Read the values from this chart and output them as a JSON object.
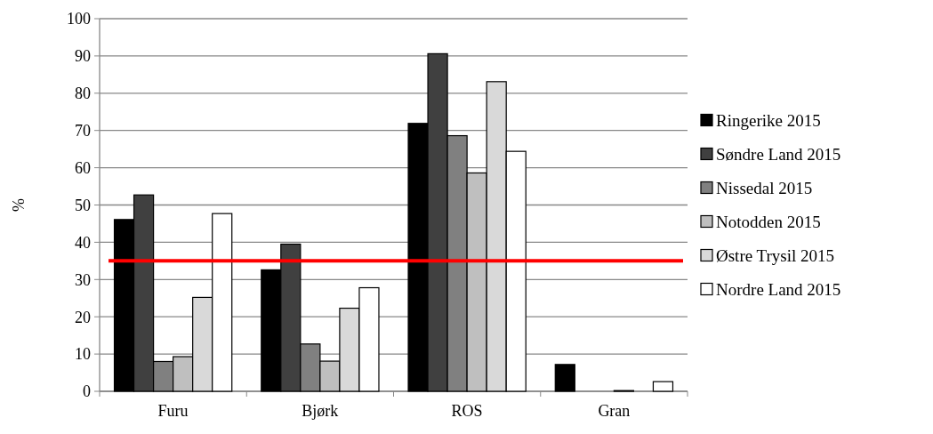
{
  "chart_data": {
    "type": "bar",
    "ylabel": "%",
    "categories": [
      "Furu",
      "Bjørk",
      "ROS",
      "Gran"
    ],
    "series": [
      {
        "name": "Ringerike 2015",
        "color": "#000000",
        "values": [
          46.1,
          32.6,
          71.9,
          7.2
        ]
      },
      {
        "name": "Søndre Land 2015",
        "color": "#404040",
        "values": [
          52.7,
          39.5,
          90.6,
          0
        ]
      },
      {
        "name": "Nissedal 2015",
        "color": "#808080",
        "values": [
          8.0,
          12.7,
          68.6,
          0
        ]
      },
      {
        "name": "Notodden 2015",
        "color": "#bfbfbf",
        "values": [
          9.3,
          8.1,
          58.6,
          0.2
        ]
      },
      {
        "name": "Østre Trysil 2015",
        "color": "#d9d9d9",
        "values": [
          25.2,
          22.3,
          83.1,
          0
        ]
      },
      {
        "name": "Nordre Land 2015",
        "color": "#ffffff",
        "values": [
          47.7,
          27.8,
          64.4,
          2.6
        ]
      }
    ],
    "ylim": [
      0,
      100
    ],
    "yticks": [
      0,
      10,
      20,
      30,
      40,
      50,
      60,
      70,
      80,
      90,
      100
    ],
    "grid": "y",
    "legend": "right",
    "ref_lines": [
      {
        "axis": "y",
        "value": 35,
        "color": "#ff0000"
      }
    ]
  }
}
